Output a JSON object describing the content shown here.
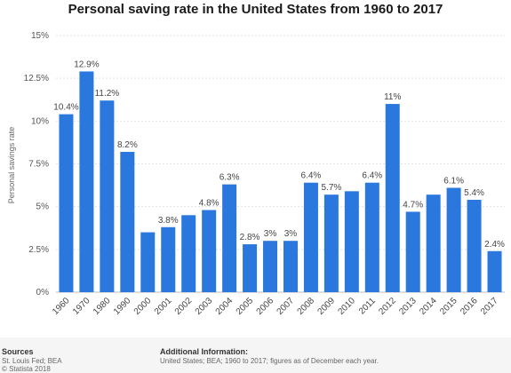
{
  "chart_data": {
    "type": "bar",
    "title": "Personal saving rate in the United States from 1960 to 2017",
    "ylabel": "Personal savings rate",
    "xlabel": "",
    "ylim": [
      0,
      15
    ],
    "yticks": [
      "0%",
      "2.5%",
      "5%",
      "7.5%",
      "10%",
      "12.5%",
      "15%"
    ],
    "grid": true,
    "bar_color": "#2a78de",
    "categories": [
      "1960",
      "1970",
      "1980",
      "1990",
      "2000",
      "2001",
      "2002",
      "2003",
      "2004",
      "2005",
      "2006",
      "2007",
      "2008",
      "2009",
      "2010",
      "2011",
      "2012",
      "2013",
      "2014",
      "2015",
      "2016",
      "2017"
    ],
    "values": [
      10.4,
      12.9,
      11.2,
      8.2,
      3.5,
      3.8,
      4.5,
      4.8,
      6.3,
      2.8,
      3.0,
      3.0,
      6.4,
      5.7,
      5.9,
      6.4,
      11.0,
      4.7,
      5.7,
      6.1,
      5.4,
      2.4
    ],
    "labels": [
      "10.4%",
      "12.9%",
      "11.2%",
      "8.2%",
      "",
      "3.8%",
      "",
      "4.8%",
      "6.3%",
      "2.8%",
      "3%",
      "3%",
      "6.4%",
      "5.7%",
      "",
      "6.4%",
      "11%",
      "4.7%",
      "",
      "6.1%",
      "5.4%",
      "2.4%"
    ]
  },
  "footer": {
    "sources_title": "Sources",
    "source_lines": [
      "St. Louis Fed; BEA",
      "© Statista 2018"
    ],
    "info_title": "Additional Information:",
    "info_text": "United States; BEA; 1960 to 2017; figures as of December each year."
  }
}
